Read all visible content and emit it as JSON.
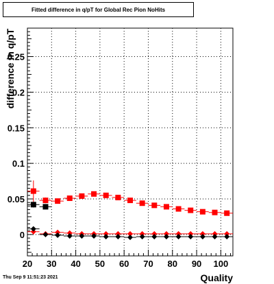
{
  "title": "Fitted difference in q/pT for Global Rec Pion NoHits",
  "footer_text": "Thu Sep  9 11:51:23 2021",
  "chart_data": {
    "type": "scatter",
    "title": "Fitted difference in q/pT for Global Rec Pion NoHits",
    "xlabel": "Quality",
    "ylabel": "difference in q/pT",
    "xlim": [
      20,
      105
    ],
    "ylim": [
      -0.03,
      0.29
    ],
    "xticks": [
      20,
      30,
      40,
      50,
      60,
      70,
      80,
      90,
      100
    ],
    "yticks": [
      0,
      0.05,
      0.1,
      0.15,
      0.2,
      0.25
    ],
    "ytick_labels": [
      "0",
      "0.05",
      "0.1",
      "0.15",
      "0.2",
      "0.25"
    ],
    "grid": true,
    "series": [
      {
        "color": "#ff0000",
        "marker": "square",
        "points": [
          {
            "x": 22.5,
            "y": 0.061,
            "ey": 0.015
          },
          {
            "x": 27.5,
            "y": 0.048,
            "ey": 0.004
          },
          {
            "x": 32.5,
            "y": 0.047,
            "ey": 0.003
          },
          {
            "x": 37.5,
            "y": 0.051,
            "ey": 0.002
          },
          {
            "x": 42.5,
            "y": 0.054,
            "ey": 0.002
          },
          {
            "x": 47.5,
            "y": 0.057,
            "ey": 0.002
          },
          {
            "x": 52.5,
            "y": 0.055,
            "ey": 0.002
          },
          {
            "x": 57.5,
            "y": 0.052,
            "ey": 0.002
          },
          {
            "x": 62.5,
            "y": 0.048,
            "ey": 0.002
          },
          {
            "x": 67.5,
            "y": 0.044,
            "ey": 0.002
          },
          {
            "x": 72.5,
            "y": 0.041,
            "ey": 0.002
          },
          {
            "x": 77.5,
            "y": 0.039,
            "ey": 0.002
          },
          {
            "x": 82.5,
            "y": 0.036,
            "ey": 0.002
          },
          {
            "x": 87.5,
            "y": 0.034,
            "ey": 0.002
          },
          {
            "x": 92.5,
            "y": 0.032,
            "ey": 0.002
          },
          {
            "x": 97.5,
            "y": 0.031,
            "ey": 0.002
          },
          {
            "x": 102.5,
            "y": 0.03,
            "ey": 0.002
          }
        ]
      },
      {
        "color": "#000000",
        "marker": "square",
        "points": [
          {
            "x": 22.5,
            "y": 0.042,
            "ey": 0.004
          },
          {
            "x": 27.5,
            "y": 0.039,
            "ey": 0.003
          }
        ]
      },
      {
        "color": "#ff0000",
        "marker": "diamond",
        "points": [
          {
            "x": 22.5,
            "y": 0.004,
            "ey": 0.004
          },
          {
            "x": 27.5,
            "y": 0.001,
            "ey": 0.002
          },
          {
            "x": 32.5,
            "y": 0.003,
            "ey": 0.001
          },
          {
            "x": 37.5,
            "y": 0.002,
            "ey": 0.001
          },
          {
            "x": 42.5,
            "y": 0.001,
            "ey": 0.001
          },
          {
            "x": 47.5,
            "y": 0.001,
            "ey": 0.001
          },
          {
            "x": 52.5,
            "y": 0.001,
            "ey": 0.001
          },
          {
            "x": 57.5,
            "y": 0.001,
            "ey": 0.001
          },
          {
            "x": 62.5,
            "y": 0.001,
            "ey": 0.001
          },
          {
            "x": 67.5,
            "y": 0.001,
            "ey": 0.001
          },
          {
            "x": 72.5,
            "y": 0.001,
            "ey": 0.001
          },
          {
            "x": 77.5,
            "y": 0.001,
            "ey": 0.001
          },
          {
            "x": 82.5,
            "y": 0.001,
            "ey": 0.001
          },
          {
            "x": 87.5,
            "y": 0.001,
            "ey": 0.001
          },
          {
            "x": 92.5,
            "y": 0.001,
            "ey": 0.001
          },
          {
            "x": 97.5,
            "y": 0.001,
            "ey": 0.001
          },
          {
            "x": 102.5,
            "y": 0.001,
            "ey": 0.001
          }
        ]
      },
      {
        "color": "#000000",
        "marker": "diamond",
        "points": [
          {
            "x": 22.5,
            "y": 0.008,
            "ey": 0.003
          },
          {
            "x": 27.5,
            "y": 0.0,
            "ey": 0.002
          },
          {
            "x": 32.5,
            "y": -0.001,
            "ey": 0.001
          },
          {
            "x": 37.5,
            "y": -0.002,
            "ey": 0.001
          },
          {
            "x": 42.5,
            "y": -0.002,
            "ey": 0.001
          },
          {
            "x": 47.5,
            "y": -0.002,
            "ey": 0.001
          },
          {
            "x": 52.5,
            "y": -0.003,
            "ey": 0.001
          },
          {
            "x": 57.5,
            "y": -0.003,
            "ey": 0.001
          },
          {
            "x": 62.5,
            "y": -0.004,
            "ey": 0.001
          },
          {
            "x": 67.5,
            "y": -0.003,
            "ey": 0.001
          },
          {
            "x": 72.5,
            "y": -0.003,
            "ey": 0.001
          },
          {
            "x": 77.5,
            "y": -0.003,
            "ey": 0.001
          },
          {
            "x": 82.5,
            "y": -0.003,
            "ey": 0.001
          },
          {
            "x": 87.5,
            "y": -0.003,
            "ey": 0.001
          },
          {
            "x": 92.5,
            "y": -0.003,
            "ey": 0.001
          },
          {
            "x": 97.5,
            "y": -0.003,
            "ey": 0.001
          },
          {
            "x": 102.5,
            "y": -0.003,
            "ey": 0.001
          }
        ]
      }
    ]
  }
}
